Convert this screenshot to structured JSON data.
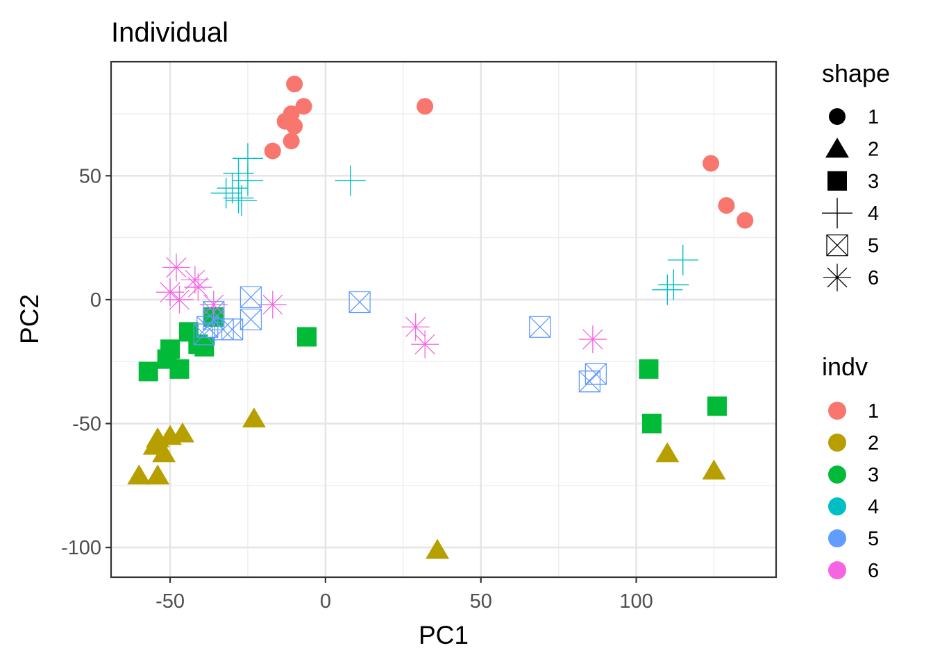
{
  "chart_data": {
    "type": "scatter",
    "title": "Individual",
    "xlabel": "PC1",
    "ylabel": "PC2",
    "xlim": [
      -69,
      145
    ],
    "ylim": [
      -112,
      96
    ],
    "xticks": [
      -50,
      0,
      50,
      100
    ],
    "yticks": [
      -100,
      -50,
      0,
      50
    ],
    "x_tick_labels": [
      "-50",
      "0",
      "50",
      "100"
    ],
    "y_tick_labels": [
      "-100",
      "-50",
      "0",
      "50"
    ],
    "grid": true,
    "legend_position": "right",
    "legends": [
      {
        "title": "shape",
        "entries": [
          {
            "label": "1",
            "shape": "circle"
          },
          {
            "label": "2",
            "shape": "triangle"
          },
          {
            "label": "3",
            "shape": "square"
          },
          {
            "label": "4",
            "shape": "plus"
          },
          {
            "label": "5",
            "shape": "boxed-x"
          },
          {
            "label": "6",
            "shape": "star"
          }
        ]
      },
      {
        "title": "indv",
        "entries": [
          {
            "label": "1",
            "color": "#F8766D"
          },
          {
            "label": "2",
            "color": "#B79F00"
          },
          {
            "label": "3",
            "color": "#00BA38"
          },
          {
            "label": "4",
            "color": "#00BFC4"
          },
          {
            "label": "5",
            "color": "#619CFF"
          },
          {
            "label": "6",
            "color": "#F564E3"
          }
        ]
      }
    ],
    "series": [
      {
        "name": "1",
        "shape": "circle",
        "color": "#F8766D",
        "points": [
          [
            -10,
            87
          ],
          [
            -7,
            78
          ],
          [
            -11,
            75
          ],
          [
            -13,
            72
          ],
          [
            -10,
            70
          ],
          [
            -11,
            64
          ],
          [
            -17,
            60
          ],
          [
            32,
            78
          ],
          [
            124,
            55
          ],
          [
            129,
            38
          ],
          [
            135,
            32
          ]
        ]
      },
      {
        "name": "2",
        "shape": "triangle",
        "color": "#B79F00",
        "points": [
          [
            -23,
            -48
          ],
          [
            -46,
            -54
          ],
          [
            -50,
            -55
          ],
          [
            -54,
            -56
          ],
          [
            -55,
            -59
          ],
          [
            -52,
            -62
          ],
          [
            -60,
            -71
          ],
          [
            -54,
            -71
          ],
          [
            36,
            -101
          ],
          [
            110,
            -62
          ],
          [
            125,
            -69
          ]
        ]
      },
      {
        "name": "3",
        "shape": "square",
        "color": "#00BA38",
        "points": [
          [
            -36,
            -7
          ],
          [
            -44,
            -13
          ],
          [
            -41,
            -18
          ],
          [
            -39,
            -19
          ],
          [
            -50,
            -20
          ],
          [
            -51,
            -24
          ],
          [
            -47,
            -28
          ],
          [
            -57,
            -29
          ],
          [
            -6,
            -15
          ],
          [
            104,
            -28
          ],
          [
            126,
            -43
          ],
          [
            105,
            -50
          ]
        ]
      },
      {
        "name": "4",
        "shape": "plus",
        "color": "#00BFC4",
        "points": [
          [
            -25,
            57
          ],
          [
            -28,
            51
          ],
          [
            -25,
            48
          ],
          [
            -30,
            45
          ],
          [
            -28,
            41
          ],
          [
            -32,
            43
          ],
          [
            -27,
            40
          ],
          [
            8,
            48
          ],
          [
            115,
            16
          ],
          [
            112,
            6
          ],
          [
            110,
            4
          ]
        ]
      },
      {
        "name": "5",
        "shape": "boxed-x",
        "color": "#619CFF",
        "points": [
          [
            -24,
            1
          ],
          [
            -36,
            -5
          ],
          [
            -36,
            -8
          ],
          [
            -38,
            -11
          ],
          [
            -33,
            -12
          ],
          [
            -30,
            -12
          ],
          [
            -24,
            -8
          ],
          [
            -39,
            -14
          ],
          [
            11,
            -1
          ],
          [
            69,
            -11
          ],
          [
            87,
            -30
          ],
          [
            85,
            -33
          ]
        ]
      },
      {
        "name": "6",
        "shape": "star",
        "color": "#F564E3",
        "points": [
          [
            -48,
            13
          ],
          [
            -42,
            8
          ],
          [
            -41,
            5
          ],
          [
            -50,
            3
          ],
          [
            -47,
            0
          ],
          [
            -36,
            -2
          ],
          [
            -17,
            -2
          ],
          [
            29,
            -11
          ],
          [
            32,
            -18
          ],
          [
            86,
            -16
          ]
        ]
      }
    ]
  }
}
